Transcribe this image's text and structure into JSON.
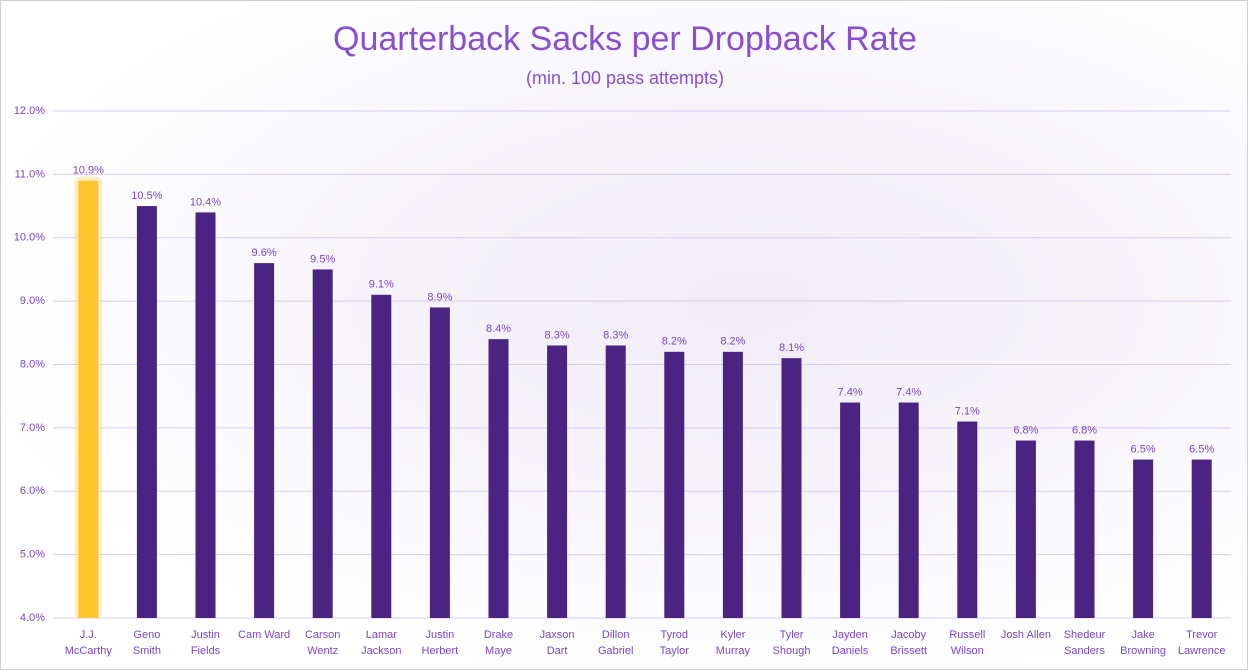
{
  "chart_data": {
    "type": "bar",
    "title": "Quarterback Sacks per Dropback Rate",
    "subtitle": "(min. 100 pass attempts)",
    "categories": [
      "J.J. McCarthy",
      "Geno Smith",
      "Justin Fields",
      "Cam Ward",
      "Carson Wentz",
      "Lamar Jackson",
      "Justin Herbert",
      "Drake Maye",
      "Jaxson Dart",
      "Dillon Gabriel",
      "Tyrod Taylor",
      "Kyler Murray",
      "Tyler Shough",
      "Jayden Daniels",
      "Jacoby Brissett",
      "Russell Wilson",
      "Josh Allen",
      "Shedeur Sanders",
      "Jake Browning",
      "Trevor Lawrence"
    ],
    "values": [
      10.9,
      10.5,
      10.4,
      9.6,
      9.5,
      9.1,
      8.9,
      8.4,
      8.3,
      8.3,
      8.2,
      8.2,
      8.1,
      7.4,
      7.4,
      7.1,
      6.8,
      6.8,
      6.5,
      6.5
    ],
    "value_labels": [
      "10.9%",
      "10.5%",
      "10.4%",
      "9.6%",
      "9.5%",
      "9.1%",
      "8.9%",
      "8.4%",
      "8.3%",
      "8.3%",
      "8.2%",
      "8.2%",
      "8.1%",
      "7.4%",
      "7.4%",
      "7.1%",
      "6.8%",
      "6.8%",
      "6.5%",
      "6.5%"
    ],
    "colors": [
      "#ffc42e",
      "#4b2382",
      "#4b2382",
      "#4b2382",
      "#4b2382",
      "#4b2382",
      "#4b2382",
      "#4b2382",
      "#4b2382",
      "#4b2382",
      "#4b2382",
      "#4b2382",
      "#4b2382",
      "#4b2382",
      "#4b2382",
      "#4b2382",
      "#4b2382",
      "#4b2382",
      "#4b2382",
      "#4b2382"
    ],
    "ylim": [
      4,
      12
    ],
    "yticks": [
      {
        "value": 4,
        "label": "4.0%"
      },
      {
        "value": 5,
        "label": "5.0%"
      },
      {
        "value": 6,
        "label": "6.0%"
      },
      {
        "value": 7,
        "label": "7.0%"
      },
      {
        "value": 8,
        "label": "8.0%"
      },
      {
        "value": 9,
        "label": "9.0%"
      },
      {
        "value": 10,
        "label": "10.0%"
      },
      {
        "value": 11,
        "label": "11.0%"
      },
      {
        "value": 12,
        "label": "12.0%"
      }
    ],
    "grid": true
  }
}
